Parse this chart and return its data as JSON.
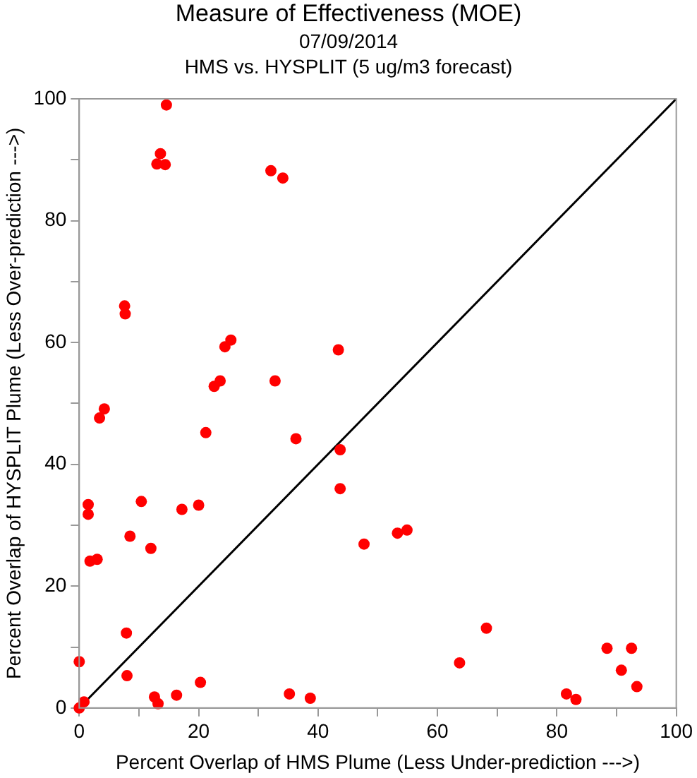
{
  "chart_data": {
    "type": "scatter",
    "title": "Measure of Effectiveness (MOE)",
    "subtitle": "07/09/2014",
    "annotations": [
      "HMS vs. HYSPLIT  (5 ug/m3 forecast)"
    ],
    "xlabel": "Percent Overlap of HMS Plume (Less Under-prediction --->)",
    "ylabel": "Percent Overlap of HYSPLIT Plume (Less Over-prediction --->)",
    "xlim": [
      0,
      100
    ],
    "ylim": [
      0,
      100
    ],
    "xticks": [
      0,
      {
        "value": 10,
        "label": null
      },
      20,
      {
        "value": 30,
        "label": null
      },
      40,
      {
        "value": 50,
        "label": null
      },
      60,
      {
        "value": 70,
        "label": null
      },
      80,
      {
        "value": 90,
        "label": null
      },
      100
    ],
    "yticks": [
      0,
      {
        "value": 10,
        "label": null
      },
      20,
      {
        "value": 30,
        "label": null
      },
      40,
      {
        "value": 50,
        "label": null
      },
      60,
      {
        "value": 70,
        "label": null
      },
      80,
      {
        "value": 90,
        "label": null
      },
      100
    ],
    "grid": false,
    "legend": false,
    "marker": "circle",
    "series": [
      {
        "type": "line",
        "color": "#000000",
        "marker": "none",
        "x": [
          0,
          100
        ],
        "values": [
          0,
          100
        ]
      },
      {
        "color": "#ff0000",
        "x": [
          14.6,
          13.6,
          13.0,
          14.4,
          32.1,
          34.1,
          7.6,
          7.7,
          25.4,
          24.4,
          43.4,
          23.6,
          22.6,
          32.8,
          4.2,
          3.4,
          21.2,
          36.3,
          43.7,
          43.7,
          10.4,
          1.5,
          20.0,
          17.2,
          1.5,
          8.5,
          12.0,
          3.0,
          1.8,
          7.9,
          0,
          8.0,
          20.3,
          35.2,
          16.3,
          38.7,
          12.6,
          13.2,
          0.8,
          0,
          47.7,
          53.3,
          54.9,
          68.2,
          63.7,
          88.4,
          92.5,
          90.8,
          93.4,
          81.6,
          83.2
        ],
        "values": [
          99.0,
          91.0,
          89.3,
          89.2,
          88.2,
          87.0,
          66.0,
          64.7,
          60.4,
          59.3,
          58.8,
          53.7,
          52.8,
          53.7,
          49.1,
          47.6,
          45.2,
          44.2,
          42.4,
          36.0,
          33.9,
          33.4,
          33.3,
          32.6,
          31.8,
          28.2,
          26.2,
          24.4,
          24.1,
          12.3,
          7.6,
          5.3,
          4.2,
          2.3,
          2.1,
          1.6,
          1.8,
          0.7,
          1.0,
          0,
          26.9,
          28.7,
          29.2,
          13.1,
          7.4,
          9.8,
          9.8,
          6.2,
          3.5,
          2.3,
          1.4
        ]
      }
    ]
  }
}
